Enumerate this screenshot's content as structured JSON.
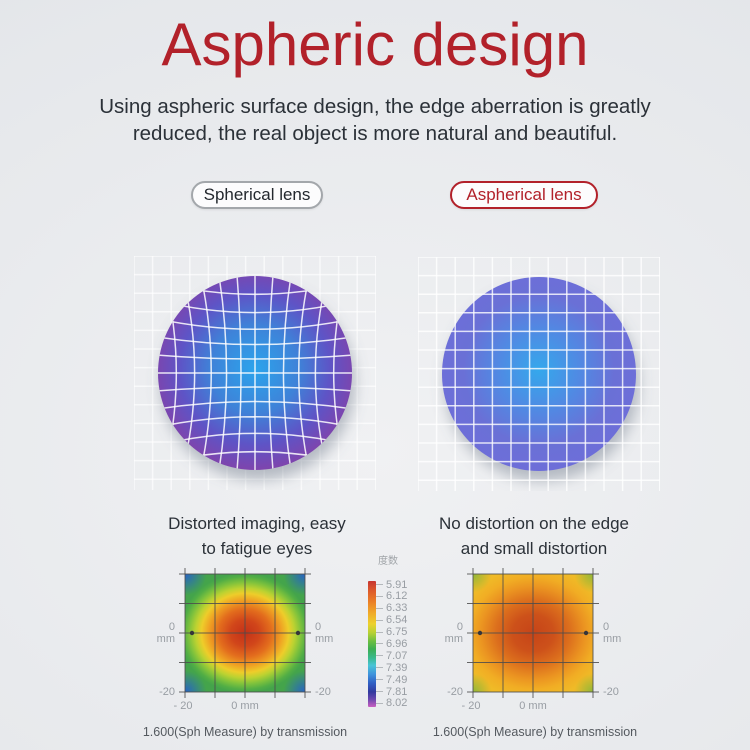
{
  "colors": {
    "accent_red": "#b2212a",
    "text_dark": "#2b3138",
    "muted_label": "#989da3",
    "lens_spherical_stops": [
      "#2ba4ec",
      "#3f82d8",
      "#5e54c6",
      "#8342a9"
    ],
    "lens_aspherical_stops": [
      "#34a8ec",
      "#5387e2",
      "#6a70d6",
      "#6e6ed9"
    ],
    "lens_grid_line": "#ffffff",
    "heatmap_grid_line": "#4c4c4c"
  },
  "header": {
    "title": "Aspheric design",
    "subtitle_line1": "Using aspheric surface design, the edge aberration is greatly",
    "subtitle_line2": "reduced, the real object is more natural and beautiful."
  },
  "panels": {
    "spherical": {
      "label": "Spherical lens",
      "caption_line1": "Distorted imaging, easy",
      "caption_line2": "to fatigue eyes",
      "footnote": "1.600(Sph Measure) by transmission"
    },
    "aspherical": {
      "label": "Aspherical lens",
      "caption_line1": "No distortion on the edge",
      "caption_line2": "and small distortion",
      "footnote": "1.600(Sph Measure) by transmission"
    }
  },
  "heatmap_axis": {
    "side_value": "0",
    "side_unit": "mm",
    "corner": "-20",
    "bottom_left": "- 20",
    "bottom_center": "0 mm"
  },
  "legend": {
    "title": "度数",
    "ticks": [
      "5.91",
      "6.12",
      "6.33",
      "6.54",
      "6.75",
      "6.96",
      "7.07",
      "7.39",
      "7.49",
      "7.81",
      "8.02"
    ]
  }
}
